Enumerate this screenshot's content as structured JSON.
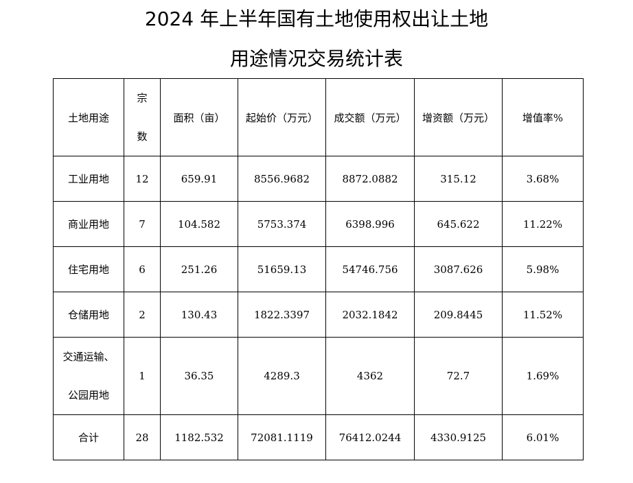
{
  "title": {
    "line1": "2024 年上半年国有土地使用权出让土地",
    "line2": "用途情况交易统计表"
  },
  "table": {
    "headers": {
      "land_use": "土地用途",
      "count_top": "宗",
      "count_bottom": "数",
      "area": "面积（亩）",
      "start_price": "起始价（万元）",
      "deal_amount": "成交额（万元）",
      "increase": "增资额（万元）",
      "rate": "增值率%"
    },
    "rows": [
      {
        "land_use": "工业用地",
        "count": "12",
        "area": "659.91",
        "start_price": "8556.9682",
        "deal_amount": "8872.0882",
        "increase": "315.12",
        "rate": "3.68%"
      },
      {
        "land_use": "商业用地",
        "count": "7",
        "area": "104.582",
        "start_price": "5753.374",
        "deal_amount": "6398.996",
        "increase": "645.622",
        "rate": "11.22%"
      },
      {
        "land_use": "住宅用地",
        "count": "6",
        "area": "251.26",
        "start_price": "51659.13",
        "deal_amount": "54746.756",
        "increase": "3087.626",
        "rate": "5.98%"
      },
      {
        "land_use": "仓储用地",
        "count": "2",
        "area": "130.43",
        "start_price": "1822.3397",
        "deal_amount": "2032.1842",
        "increase": "209.8445",
        "rate": "11.52%"
      },
      {
        "land_use_line1": "交通运输、",
        "land_use_line2": "公园用地",
        "count": "1",
        "area": "36.35",
        "start_price": "4289.3",
        "deal_amount": "4362",
        "increase": "72.7",
        "rate": "1.69%"
      }
    ],
    "total": {
      "label": "合计",
      "count": "28",
      "area": "1182.532",
      "start_price": "72081.1119",
      "deal_amount": "76412.0244",
      "increase": "4330.9125",
      "rate": "6.01%"
    }
  }
}
